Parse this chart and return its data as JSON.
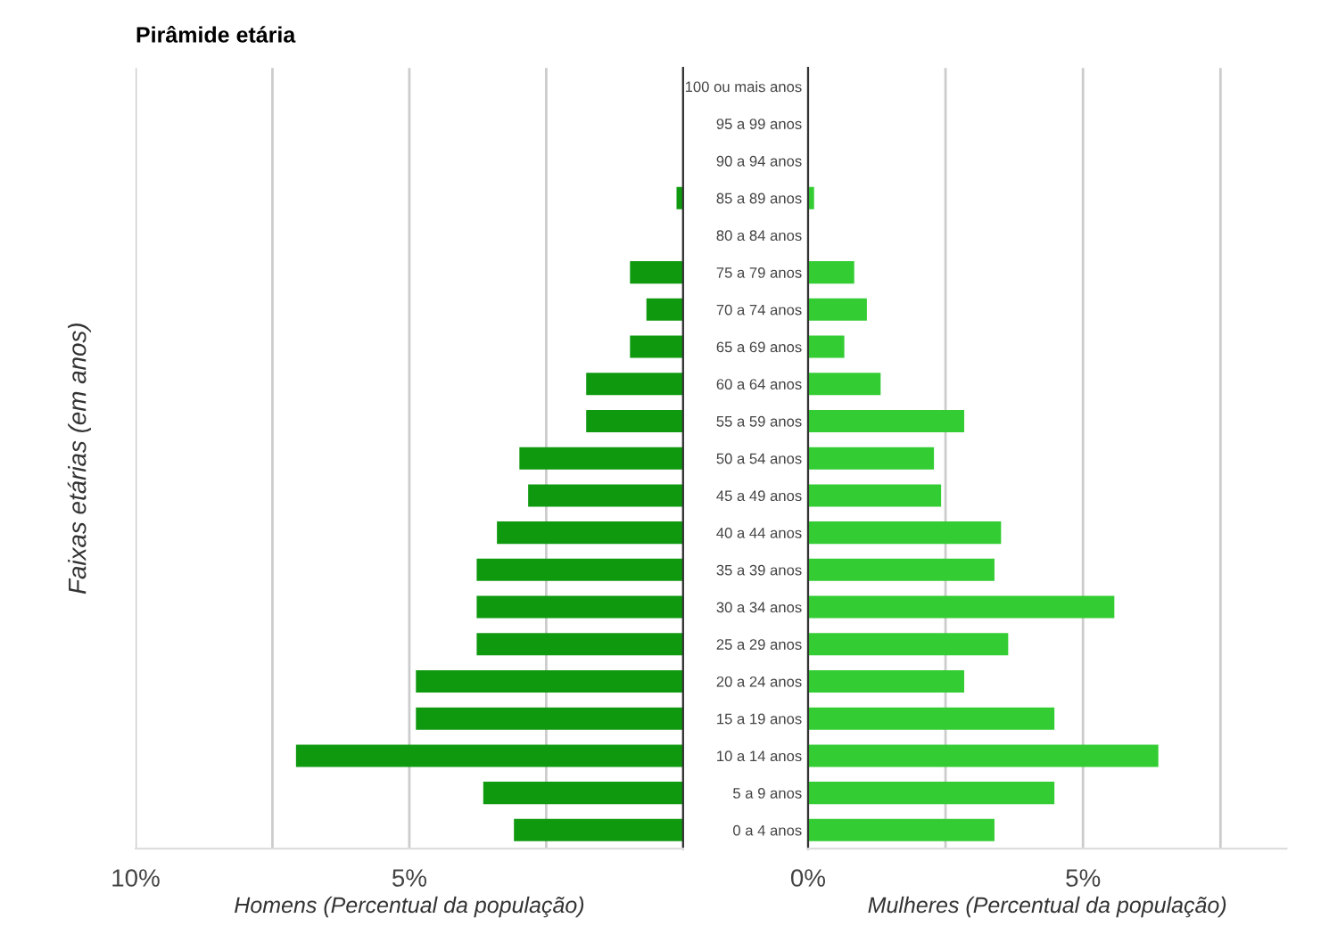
{
  "chart_data": [
    {
      "type": "bar",
      "orientation": "horizontal",
      "title": "Pirâmide etária",
      "ylabel": "Faixas etárias (em anos)",
      "xlabel": "Homens (Percentual da população)",
      "categories": [
        "100 ou mais anos",
        "95 a 99 anos",
        "90 a 94 anos",
        "85 a 89 anos",
        "80 a 84 anos",
        "75 a 79 anos",
        "70 a 74 anos",
        "65 a 69 anos",
        "60 a 64 anos",
        "55 a 59 anos",
        "50 a 54 anos",
        "45 a 49 anos",
        "40 a 44 anos",
        "35 a 39 anos",
        "30 a 34 anos",
        "25 a 29 anos",
        "20 a 24 anos",
        "15 a 19 anos",
        "10 a 14 anos",
        "5 a 9 anos",
        "0 a 4 anos"
      ],
      "values": [
        0,
        0,
        0,
        0.12,
        0,
        0.97,
        0.67,
        0.97,
        1.77,
        1.77,
        2.99,
        2.83,
        3.4,
        3.77,
        3.77,
        3.77,
        4.88,
        4.88,
        7.07,
        3.65,
        3.09
      ],
      "color": "#0f990f",
      "xlim": [
        10,
        0
      ],
      "xticks": [
        {
          "value": 10,
          "label": "10%"
        },
        {
          "value": 7.5,
          "label": null
        },
        {
          "value": 5,
          "label": "5%"
        },
        {
          "value": 2.5,
          "label": null
        },
        {
          "value": 0,
          "label": null
        }
      ],
      "grid": "x"
    },
    {
      "type": "bar",
      "orientation": "horizontal",
      "xlabel": "Mulheres (Percentual da população)",
      "categories": [
        null,
        null,
        null,
        null,
        null,
        null,
        null,
        null,
        null,
        null,
        null,
        null,
        null,
        null,
        null,
        null,
        null,
        null,
        null,
        null,
        null
      ],
      "values": [
        0,
        0,
        0,
        0.11,
        0,
        0.84,
        1.07,
        0.66,
        1.32,
        2.84,
        2.29,
        2.42,
        3.51,
        3.39,
        5.57,
        3.64,
        2.84,
        4.48,
        6.37,
        4.48,
        3.39
      ],
      "color": "#33cc33",
      "xlim": [
        0,
        8.7
      ],
      "xticks": [
        {
          "value": 0,
          "label": "0%"
        },
        {
          "value": 2.5,
          "label": null
        },
        {
          "value": 5,
          "label": "5%"
        },
        {
          "value": 7.5,
          "label": null
        }
      ],
      "grid": "x",
      "tick_labels": "x"
    }
  ]
}
